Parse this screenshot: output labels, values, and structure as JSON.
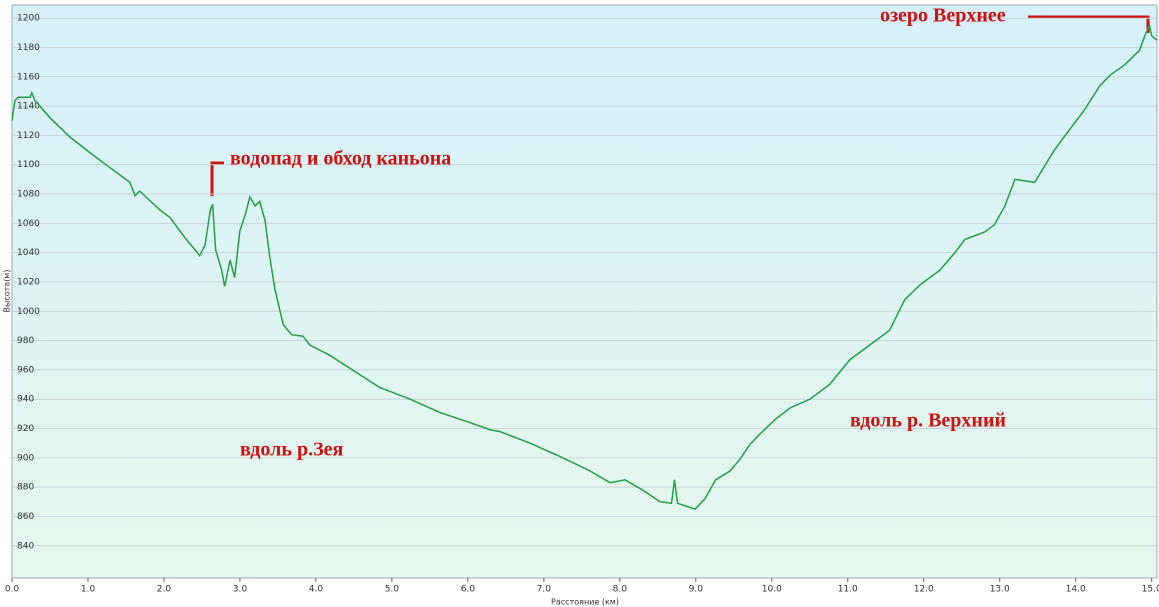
{
  "chart_data": {
    "type": "line",
    "x_label": "Расстояние (км)",
    "y_label": "Высота(м)",
    "color": "#22a046",
    "grid": true,
    "annotations": [
      "водопад и обход каньона",
      "вдоль р.Зея",
      "вдоль р. Верхний",
      "озеро Верхнее"
    ],
    "xlim": [
      0,
      15.07
    ],
    "ylim": [
      818,
      1209
    ],
    "xticks": [
      {
        "value": 0,
        "label": "0.0"
      },
      {
        "value": 1,
        "label": "1.0"
      },
      {
        "value": 2,
        "label": "2.0"
      },
      {
        "value": 3,
        "label": "3.0"
      },
      {
        "value": 4,
        "label": "4.0"
      },
      {
        "value": 5,
        "label": "5.0"
      },
      {
        "value": 6,
        "label": "6.0"
      },
      {
        "value": 7,
        "label": "7.0"
      },
      {
        "value": 8,
        "label": "8.0"
      },
      {
        "value": 9,
        "label": "9.0"
      },
      {
        "value": 10,
        "label": "10.0"
      },
      {
        "value": 11,
        "label": "11.0"
      },
      {
        "value": 12,
        "label": "12.0"
      },
      {
        "value": 13,
        "label": "13.0"
      },
      {
        "value": 14,
        "label": "14.0"
      },
      {
        "value": 15,
        "label": "15.0"
      }
    ],
    "yticks": [
      840,
      860,
      880,
      900,
      920,
      940,
      960,
      980,
      1000,
      1020,
      1040,
      1060,
      1080,
      1100,
      1120,
      1140,
      1160,
      1180,
      1200
    ],
    "x": [
      0,
      0.04,
      0.08,
      0.24,
      0.26,
      0.3,
      0.5,
      0.76,
      1.03,
      1.29,
      1.55,
      1.62,
      1.68,
      1.95,
      2.08,
      2.28,
      2.47,
      2.54,
      2.61,
      2.64,
      2.68,
      2.76,
      2.8,
      2.87,
      2.93,
      3.0,
      3.07,
      3.13,
      3.2,
      3.26,
      3.33,
      3.39,
      3.46,
      3.57,
      3.68,
      3.83,
      3.92,
      4.18,
      4.51,
      4.84,
      5.24,
      5.63,
      6.03,
      6.3,
      6.42,
      6.82,
      7.21,
      7.61,
      7.87,
      8.07,
      8.33,
      8.53,
      8.68,
      8.72,
      8.76,
      8.99,
      9.12,
      9.26,
      9.45,
      9.58,
      9.71,
      9.84,
      10.04,
      10.24,
      10.5,
      10.76,
      11.03,
      11.29,
      11.55,
      11.75,
      11.95,
      12.21,
      12.41,
      12.54,
      12.8,
      12.93,
      13.07,
      13.2,
      13.46,
      13.72,
      13.92,
      14.11,
      14.32,
      14.45,
      14.64,
      14.84,
      14.91,
      14.97,
      15.0,
      15.07
    ],
    "values": [
      1130,
      1144,
      1146,
      1146,
      1149,
      1144,
      1132,
      1119,
      1108,
      1098,
      1088,
      1079,
      1082,
      1069,
      1064,
      1050,
      1038,
      1045,
      1069,
      1073,
      1042,
      1028,
      1017,
      1035,
      1023,
      1055,
      1066,
      1078,
      1072,
      1075,
      1062,
      1038,
      1015,
      991,
      984,
      983,
      977,
      970,
      959,
      948,
      940,
      931,
      924,
      919,
      918,
      910,
      901,
      891,
      883,
      885,
      877,
      870,
      869,
      885,
      869,
      865,
      872,
      885,
      891,
      899,
      909,
      916,
      926,
      934,
      940,
      950,
      967,
      977,
      987,
      1008,
      1018,
      1028,
      1040,
      1049,
      1054,
      1059,
      1072,
      1090,
      1088,
      1110,
      1124,
      1137,
      1154,
      1161,
      1168,
      1178,
      1188,
      1195,
      1188,
      1185
    ]
  }
}
